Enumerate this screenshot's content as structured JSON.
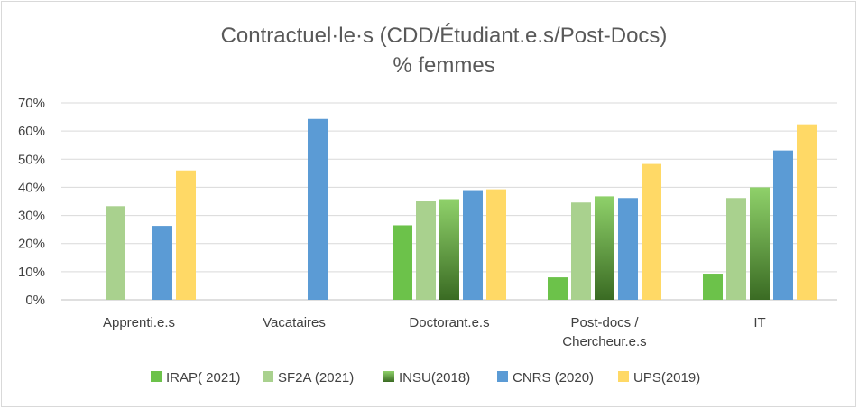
{
  "chart_data": {
    "type": "bar",
    "title": "Contractuel·le·s  (CDD/Étudiant.e.s/Post-Docs)",
    "subtitle": "% femmes",
    "categories": [
      [
        "Apprenti.e.s"
      ],
      [
        "Vacataires"
      ],
      [
        "Doctorant.e.s"
      ],
      [
        "Post-docs /",
        "Chercheur.e.s"
      ],
      [
        "IT"
      ]
    ],
    "ylim": [
      0,
      70
    ],
    "yticks": [
      "0%",
      "10%",
      "20%",
      "30%",
      "40%",
      "50%",
      "60%",
      "70%"
    ],
    "grid": true,
    "legend_position": "bottom",
    "series": [
      {
        "name": "IRAP( 2021)",
        "color": "#6cc24a",
        "values": [
          null,
          null,
          26.5,
          8,
          9.3
        ]
      },
      {
        "name": "SF2A (2021)",
        "color": "#a9d18e",
        "values": [
          33.3,
          null,
          35,
          34.6,
          36.2
        ]
      },
      {
        "name": "INSU(2018)",
        "color": "#548235",
        "gradient": true,
        "values": [
          null,
          null,
          35.8,
          36.8,
          40
        ]
      },
      {
        "name": "CNRS (2020)",
        "color": "#5b9bd5",
        "values": [
          26.3,
          64.3,
          39,
          36.2,
          53.1
        ]
      },
      {
        "name": "UPS(2019)",
        "color": "#ffd966",
        "values": [
          46,
          null,
          39.3,
          48.3,
          62.4
        ]
      }
    ]
  }
}
